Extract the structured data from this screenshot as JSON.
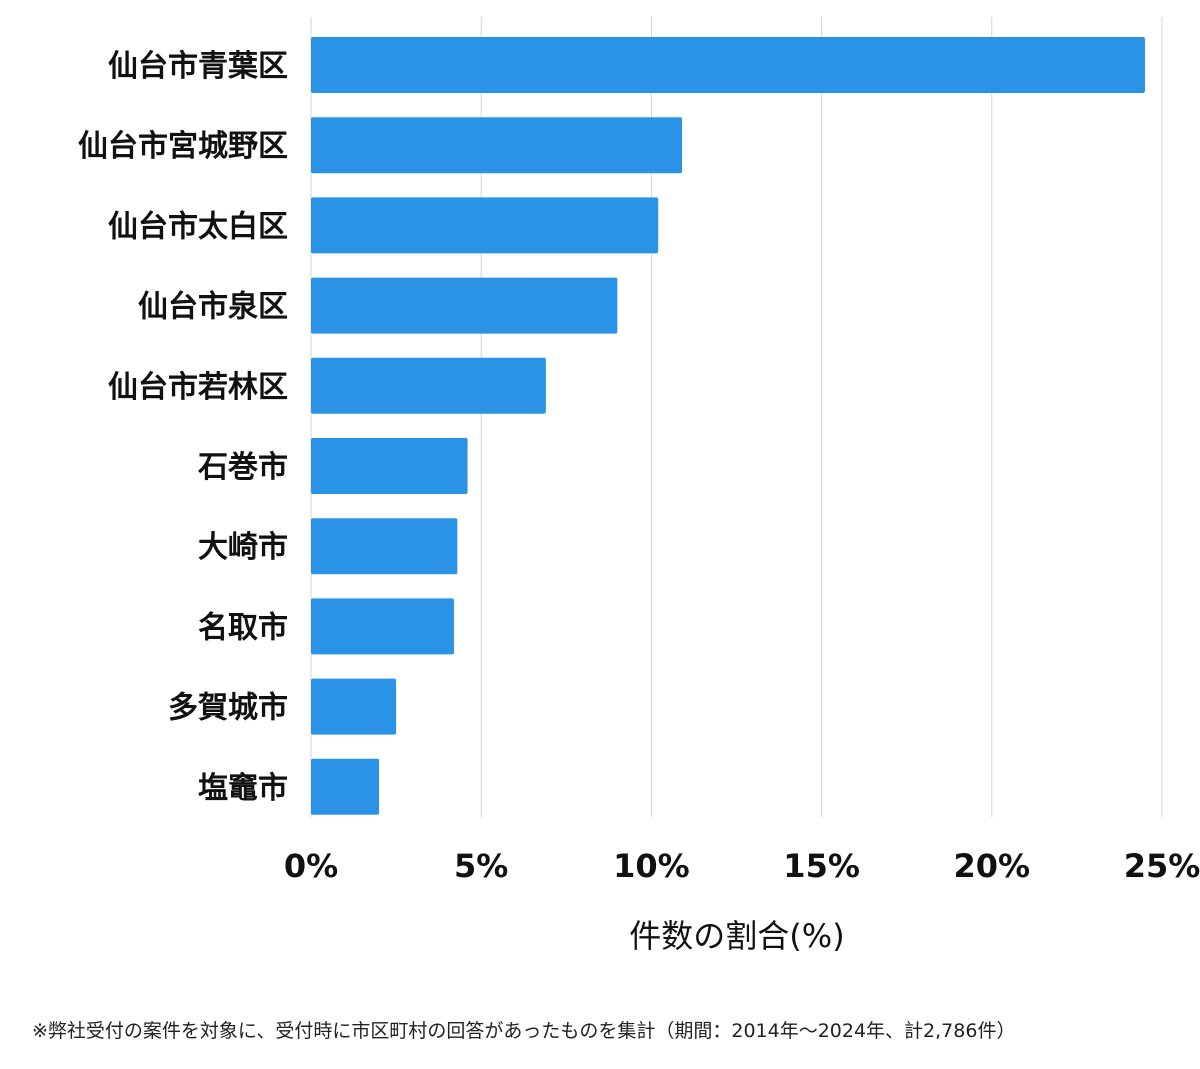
{
  "chart_data": {
    "type": "bar",
    "orientation": "horizontal",
    "categories": [
      "仙台市青葉区",
      "仙台市宮城野区",
      "仙台市太白区",
      "仙台市泉区",
      "仙台市若林区",
      "石巻市",
      "大崎市",
      "名取市",
      "多賀城市",
      "塩竈市"
    ],
    "values": [
      24.5,
      10.9,
      10.2,
      9.0,
      6.9,
      4.6,
      4.3,
      4.2,
      2.5,
      2.0
    ],
    "xlim": [
      0,
      25
    ],
    "xticks": [
      0,
      5,
      10,
      15,
      20,
      25
    ],
    "xtick_labels": [
      "0%",
      "5%",
      "10%",
      "15%",
      "20%",
      "25%"
    ],
    "xlabel": "件数の割合(%)",
    "ylabel": "",
    "title": "",
    "grid": true,
    "bar_color": "#2a93e6"
  },
  "footnote": "※弊社受付の案件を対象に、受付時に市区町村の回答があったものを集計（期間：2014年〜2024年、計2,786件）"
}
